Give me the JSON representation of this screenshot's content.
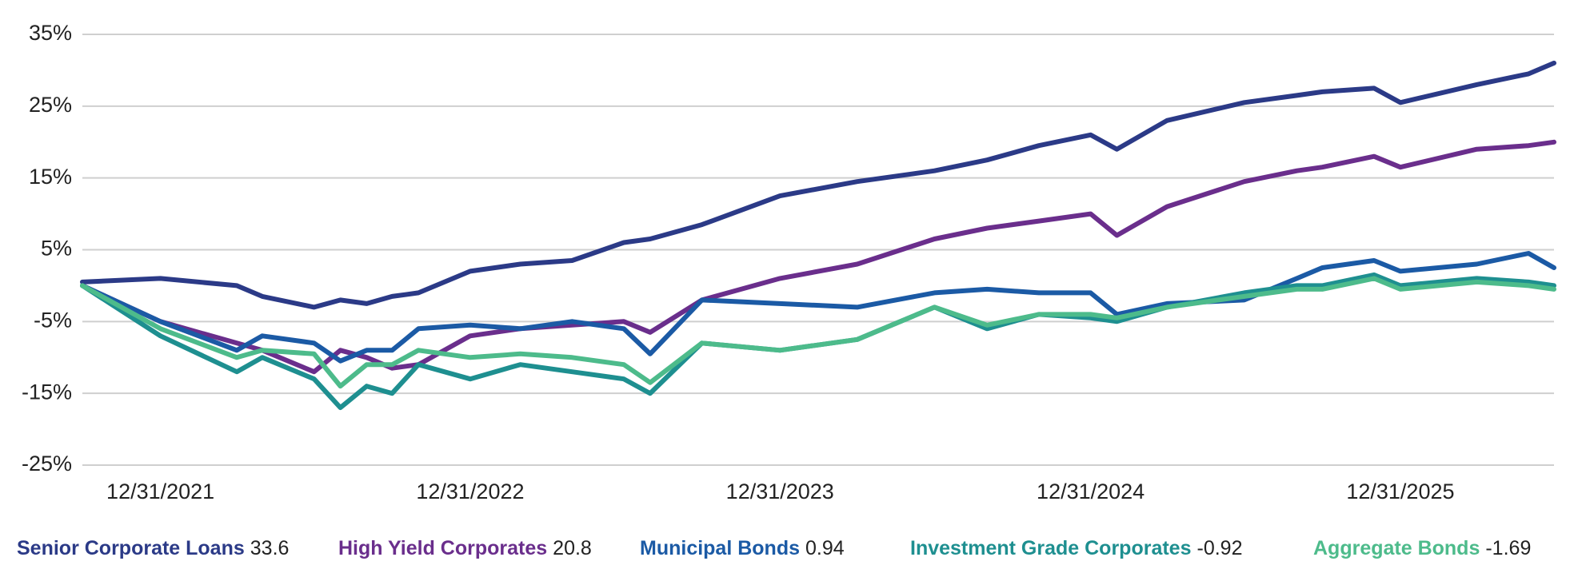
{
  "chart_data": {
    "type": "line",
    "x": [
      "2021-09-30",
      "2021-12-31",
      "2022-03-31",
      "2022-04-30",
      "2022-06-30",
      "2022-07-31",
      "2022-08-31",
      "2022-09-30",
      "2022-10-31",
      "2022-12-31",
      "2023-02-28",
      "2023-04-30",
      "2023-06-30",
      "2023-07-31",
      "2023-09-30",
      "2023-12-31",
      "2024-03-31",
      "2024-06-30",
      "2024-08-31",
      "2024-10-31",
      "2024-12-31",
      "2025-01-31",
      "2025-03-31",
      "2025-06-30",
      "2025-08-31",
      "2025-09-30",
      "2025-11-30",
      "2025-12-31",
      "2026-03-31",
      "2026-05-31",
      "2026-06-30"
    ],
    "series": [
      {
        "name": "Senior Corporate Loans",
        "total": 33.6,
        "color": "#2b3a87",
        "values": [
          0.5,
          1,
          0,
          -1.5,
          -3,
          -2,
          -2.5,
          -1.5,
          -1,
          2,
          3,
          3.5,
          6,
          6.5,
          8.5,
          12.5,
          14.5,
          16,
          17.5,
          19.5,
          21,
          19,
          23,
          25.5,
          26.5,
          27,
          27.5,
          25.5,
          28,
          29.5,
          31
        ]
      },
      {
        "name": "High Yield Corporates",
        "total": 20.8,
        "color": "#6a2e8c",
        "values": [
          0,
          -5,
          -8,
          -9,
          -12,
          -9,
          -10,
          -11.5,
          -11,
          -7,
          -6,
          -5.5,
          -5,
          -6.5,
          -2,
          1,
          3,
          6.5,
          8,
          9,
          10,
          7,
          11,
          14.5,
          16,
          16.5,
          18,
          16.5,
          19,
          19.5,
          20
        ]
      },
      {
        "name": "Municipal Bonds",
        "total": 0.94,
        "color": "#1b5aa5",
        "values": [
          0,
          -5,
          -9,
          -7,
          -8,
          -10.5,
          -9,
          -9,
          -6,
          -5.5,
          -6,
          -5,
          -6,
          -9.5,
          -2,
          -2.5,
          -3,
          -1,
          -0.5,
          -1,
          -1,
          -4,
          -2.5,
          -2,
          1,
          2.5,
          3.5,
          2,
          3,
          4.5,
          2.5
        ]
      },
      {
        "name": "Investment Grade Corporates",
        "total": -0.92,
        "color": "#1e8f90",
        "values": [
          0,
          -7,
          -12,
          -10,
          -13,
          -17,
          -14,
          -15,
          -11,
          -13,
          -11,
          -12,
          -13,
          -15,
          -8,
          -9,
          -7.5,
          -3,
          -6,
          -4,
          -4.5,
          -5,
          -3,
          -1,
          0,
          0,
          1.5,
          0,
          1,
          0.5,
          0
        ]
      },
      {
        "name": "Aggregate Bonds",
        "total": -1.69,
        "color": "#4dbb8b",
        "values": [
          0,
          -6,
          -10,
          -9,
          -9.5,
          -14,
          -11,
          -11,
          -9,
          -10,
          -9.5,
          -10,
          -11,
          -13.5,
          -8,
          -9,
          -7.5,
          -3,
          -5.5,
          -4,
          -4,
          -4.5,
          -3,
          -1.5,
          -0.5,
          -0.5,
          1,
          -0.5,
          0.5,
          0,
          -0.5
        ]
      }
    ],
    "xlim": [
      "2021-09-30",
      "2026-06-30"
    ],
    "xticks": [
      {
        "value": "2021-12-31",
        "label": "12/31/2021"
      },
      {
        "value": "2022-12-31",
        "label": "12/31/2022"
      },
      {
        "value": "2023-12-31",
        "label": "12/31/2023"
      },
      {
        "value": "2024-12-31",
        "label": "12/31/2024"
      },
      {
        "value": "2025-12-31",
        "label": "12/31/2025"
      }
    ],
    "ylim": [
      -25,
      35
    ],
    "yticks": [
      {
        "value": 35,
        "label": "35%"
      },
      {
        "value": 25,
        "label": "25%"
      },
      {
        "value": 15,
        "label": "15%"
      },
      {
        "value": 5,
        "label": "5%"
      },
      {
        "value": -5,
        "label": "-5%"
      },
      {
        "value": -15,
        "label": "-15%"
      },
      {
        "value": -25,
        "label": "-25%"
      }
    ],
    "grid": true
  }
}
